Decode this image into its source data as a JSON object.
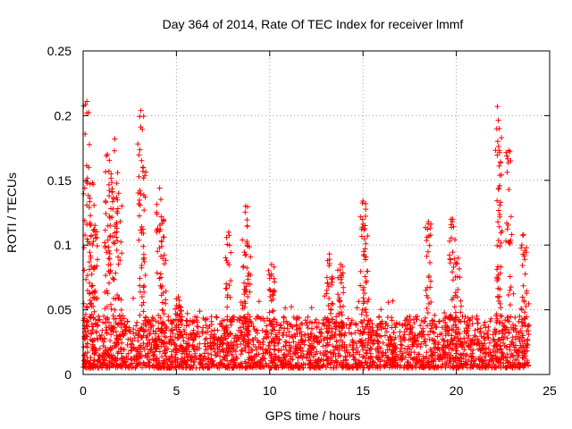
{
  "chart_data": {
    "type": "scatter",
    "title": "Day 364 of 2014, Rate Of TEC Index for receiver lmmf",
    "xlabel": "GPS time / hours",
    "ylabel": "ROTI / TECUs",
    "xlim": [
      0,
      25
    ],
    "ylim": [
      0,
      0.25
    ],
    "xticks": [
      0,
      5,
      10,
      15,
      20,
      25
    ],
    "xtick_labels": [
      "0",
      "5",
      "10",
      "15",
      "20",
      "25"
    ],
    "yticks": [
      0,
      0.05,
      0.1,
      0.15,
      0.2,
      0.25
    ],
    "ytick_labels": [
      "0",
      "0.05",
      "0.1",
      "0.15",
      "0.2",
      "0.25"
    ],
    "grid": true,
    "marker": "+",
    "series": [
      {
        "name": "ROTI",
        "color": "#ff0000",
        "x_range": [
          0,
          23.9
        ],
        "baseline_range": [
          0.005,
          0.045
        ],
        "peaks": [
          {
            "x": 0.2,
            "y": 0.211
          },
          {
            "x": 0.3,
            "y": 0.16
          },
          {
            "x": 0.5,
            "y": 0.148
          },
          {
            "x": 0.6,
            "y": 0.112
          },
          {
            "x": 1.3,
            "y": 0.17
          },
          {
            "x": 1.5,
            "y": 0.155
          },
          {
            "x": 1.7,
            "y": 0.182
          },
          {
            "x": 1.9,
            "y": 0.14
          },
          {
            "x": 3.1,
            "y": 0.204
          },
          {
            "x": 3.2,
            "y": 0.16
          },
          {
            "x": 4.1,
            "y": 0.144
          },
          {
            "x": 4.3,
            "y": 0.12
          },
          {
            "x": 5.1,
            "y": 0.06
          },
          {
            "x": 7.8,
            "y": 0.11
          },
          {
            "x": 8.7,
            "y": 0.13
          },
          {
            "x": 8.8,
            "y": 0.1
          },
          {
            "x": 10.1,
            "y": 0.085
          },
          {
            "x": 13.2,
            "y": 0.093
          },
          {
            "x": 13.8,
            "y": 0.085
          },
          {
            "x": 15.0,
            "y": 0.134
          },
          {
            "x": 15.1,
            "y": 0.115
          },
          {
            "x": 18.5,
            "y": 0.118
          },
          {
            "x": 19.8,
            "y": 0.12
          },
          {
            "x": 20.1,
            "y": 0.09
          },
          {
            "x": 22.2,
            "y": 0.207
          },
          {
            "x": 22.3,
            "y": 0.19
          },
          {
            "x": 22.8,
            "y": 0.173
          },
          {
            "x": 23.6,
            "y": 0.108
          }
        ]
      }
    ]
  }
}
